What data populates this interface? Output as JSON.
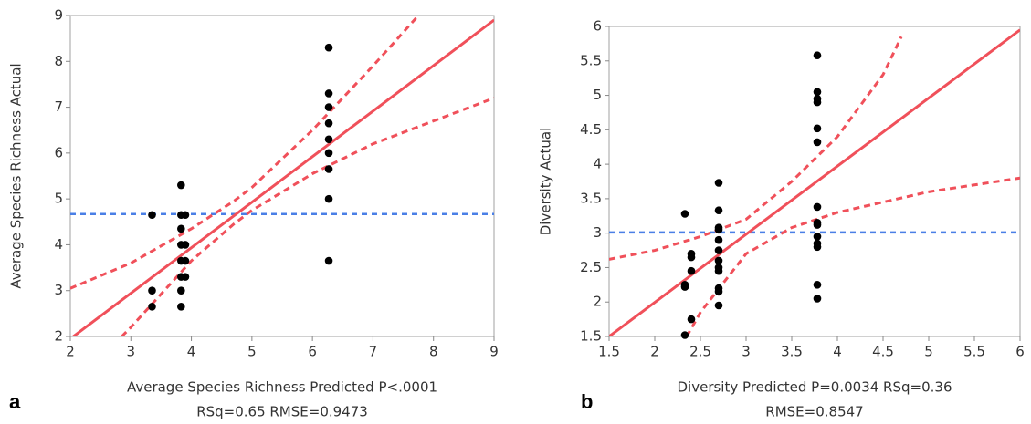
{
  "chart_data": [
    {
      "type": "scatter",
      "panel_label": "a",
      "ylabel": "Average Species Richness Actual",
      "xlabel": [
        "Average Species Richness Predicted P<.0001",
        "RSq=0.65 RMSE=0.9473"
      ],
      "xlim": [
        2,
        9
      ],
      "ylim": [
        2,
        9
      ],
      "xticks": [
        2,
        3,
        4,
        5,
        6,
        7,
        8,
        9
      ],
      "yticks": [
        2,
        3,
        4,
        5,
        6,
        7,
        8,
        9
      ],
      "points": {
        "color": "#000000",
        "x": [
          3.35,
          3.35,
          3.35,
          3.83,
          3.83,
          3.83,
          3.83,
          3.83,
          3.83,
          3.83,
          3.83,
          3.9,
          3.9,
          3.9,
          3.9,
          6.27,
          6.27,
          6.27,
          6.27,
          6.27,
          6.27,
          6.27,
          6.27,
          6.27
        ],
        "y": [
          4.65,
          3.0,
          2.65,
          5.3,
          4.65,
          4.35,
          4.0,
          3.65,
          3.3,
          3.0,
          2.65,
          4.65,
          4.0,
          3.65,
          3.3,
          8.3,
          7.3,
          7.0,
          6.65,
          6.3,
          6.0,
          5.65,
          5.0,
          3.65
        ]
      },
      "fit": {
        "color": "#f0505a",
        "x": [
          2,
          9
        ],
        "y": [
          1.95,
          8.9
        ]
      },
      "confidence_upper": {
        "color": "#f0505a",
        "x": [
          2,
          3,
          4,
          4.7,
          5,
          6,
          7,
          7.75
        ],
        "y": [
          3.05,
          3.6,
          4.35,
          4.95,
          5.25,
          6.5,
          7.9,
          9
        ]
      },
      "confidence_lower": {
        "color": "#f0505a",
        "x": [
          2.85,
          3,
          4,
          4.7,
          5,
          6,
          7,
          8,
          9
        ],
        "y": [
          2,
          2.2,
          3.65,
          4.45,
          4.75,
          5.55,
          6.2,
          6.7,
          7.2
        ]
      },
      "mean": {
        "color": "#4a7fe6",
        "value": 4.67
      }
    },
    {
      "type": "scatter",
      "panel_label": "b",
      "ylabel": "Diversity Actual",
      "xlabel": [
        "Diversity Predicted P=0.0034 RSq=0.36",
        "RMSE=0.8547"
      ],
      "xlim": [
        1.5,
        6
      ],
      "ylim": [
        1.5,
        6
      ],
      "xticks": [
        1.5,
        2,
        2.5,
        3,
        3.5,
        4,
        4.5,
        5,
        5.5,
        6
      ],
      "yticks": [
        1.5,
        2,
        2.5,
        3,
        3.5,
        4,
        4.5,
        5,
        5.5,
        6
      ],
      "points": {
        "color": "#000000",
        "x": [
          2.33,
          2.33,
          2.33,
          2.33,
          2.4,
          2.4,
          2.4,
          2.4,
          2.7,
          2.7,
          2.7,
          2.7,
          2.7,
          2.7,
          2.7,
          2.7,
          2.7,
          2.7,
          2.7,
          2.7,
          3.78,
          3.78,
          3.78,
          3.78,
          3.78,
          3.78,
          3.78,
          3.78,
          3.78,
          3.78,
          3.78,
          3.78,
          3.78,
          3.78
        ],
        "y": [
          3.28,
          2.25,
          2.22,
          1.52,
          2.7,
          2.65,
          2.45,
          1.75,
          3.73,
          3.33,
          3.08,
          3.05,
          2.9,
          2.75,
          2.6,
          2.5,
          2.45,
          2.2,
          2.15,
          1.95,
          5.58,
          5.05,
          4.95,
          4.9,
          4.52,
          4.32,
          3.38,
          3.15,
          3.12,
          2.95,
          2.85,
          2.8,
          2.25,
          2.05
        ]
      },
      "fit": {
        "color": "#f0505a",
        "x": [
          1.5,
          6
        ],
        "y": [
          1.5,
          5.95
        ]
      },
      "confidence_upper": {
        "color": "#f0505a",
        "x": [
          1.5,
          2,
          2.5,
          3,
          3.5,
          4,
          4.5,
          4.7
        ],
        "y": [
          2.62,
          2.75,
          2.95,
          3.2,
          3.75,
          4.4,
          5.3,
          5.85
        ]
      },
      "confidence_lower": {
        "color": "#f0505a",
        "x": [
          2.35,
          2.5,
          3,
          3.5,
          4,
          5,
          6
        ],
        "y": [
          1.5,
          1.85,
          2.7,
          3.08,
          3.3,
          3.6,
          3.8
        ]
      },
      "mean": {
        "color": "#4a7fe6",
        "value": 3.01
      }
    }
  ]
}
